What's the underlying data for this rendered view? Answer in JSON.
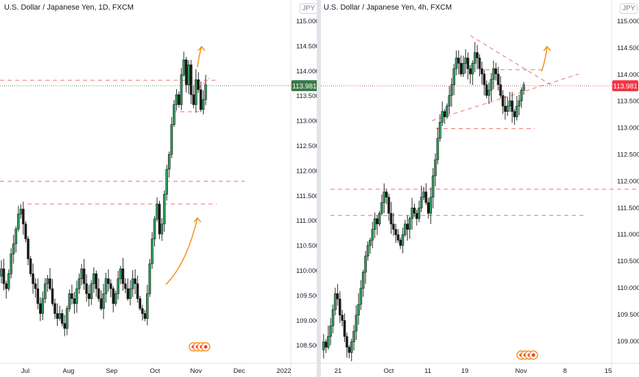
{
  "charts": [
    {
      "title": "U.S. Dollar / Japanese Yen, 1D, FXCM",
      "currency_badge": "JPY",
      "price_label": "113.981",
      "price_label_color": "#3c7a4a",
      "y_tick_labels": [
        "115.000",
        "114.500",
        "114.000",
        "113.500",
        "113.000",
        "112.500",
        "112.000",
        "111.500",
        "111.000",
        "110.500",
        "110.000",
        "109.500",
        "109.000",
        "108.500"
      ],
      "x_tick_labels": [
        "Jul",
        "Aug",
        "Sep",
        "Oct",
        "Nov",
        "Dec",
        "2022"
      ]
    },
    {
      "title": "U.S. Dollar / Japanese Yen, 4h, FXCM",
      "currency_badge": "JPY",
      "price_label": "113.981",
      "price_label_color": "#f23645",
      "y_tick_labels": [
        "115.000",
        "114.500",
        "114.000",
        "113.500",
        "113.000",
        "112.500",
        "112.000",
        "111.500",
        "111.000",
        "110.500",
        "110.000",
        "109.500",
        "109.000"
      ],
      "x_tick_labels": [
        "21",
        "Oct",
        "11",
        "19",
        "Nov",
        "8",
        "15"
      ]
    }
  ],
  "chart_data": [
    {
      "type": "candlestick",
      "title": "U.S. Dollar / Japanese Yen, 1D, FXCM",
      "ylim": [
        108.4,
        115.4
      ],
      "last_price": 113.981,
      "series": [
        {
          "close": [
            110.3,
            110.0,
            109.9,
            110.2,
            110.6,
            110.8,
            111.1,
            111.4,
            111.5,
            111.2,
            110.9,
            110.5,
            110.2,
            110.0,
            109.9,
            109.6,
            109.4,
            109.7,
            110.0,
            110.1,
            109.9,
            109.6,
            109.4,
            109.3,
            109.4,
            109.2,
            109.1,
            109.5,
            109.8,
            109.7,
            109.6,
            109.9,
            110.1,
            110.3,
            110.0,
            109.8,
            109.7,
            110.0,
            110.2,
            109.9,
            109.7,
            109.5,
            109.8,
            110.1,
            110.0,
            109.9,
            109.6,
            109.8,
            110.1,
            110.3,
            110.0,
            109.9,
            109.7,
            109.9,
            110.1,
            110.0,
            109.7,
            109.5,
            109.4,
            109.3,
            109.8,
            110.4,
            110.9,
            111.3,
            111.6,
            111.0,
            111.2,
            111.8,
            112.3,
            112.6,
            113.2,
            113.6,
            113.8,
            113.6,
            114.2,
            114.5,
            114.0,
            114.4,
            113.8,
            113.6,
            114.1,
            113.9,
            113.5,
            113.7,
            114.0
          ]
        }
      ],
      "horizontal_levels": [
        114.09,
        112.06,
        111.6
      ],
      "annotations": [
        "orange arrow up",
        "orange arrow up"
      ]
    },
    {
      "type": "candlestick",
      "title": "U.S. Dollar / Japanese Yen, 4h, FXCM",
      "ylim": [
        108.8,
        115.3
      ],
      "last_price": 113.981,
      "series": [
        {
          "close": [
            109.2,
            109.1,
            109.3,
            109.5,
            109.8,
            110.1,
            110.0,
            109.7,
            109.6,
            109.3,
            109.1,
            109.0,
            109.2,
            109.4,
            109.7,
            109.9,
            110.2,
            110.5,
            110.8,
            111.0,
            111.1,
            111.3,
            111.5,
            111.4,
            111.6,
            111.8,
            112.0,
            111.9,
            111.6,
            111.4,
            111.3,
            111.2,
            111.1,
            111.0,
            111.2,
            111.4,
            111.3,
            111.5,
            111.7,
            111.6,
            111.5,
            111.7,
            111.9,
            112.0,
            111.8,
            111.6,
            111.9,
            112.3,
            112.6,
            113.0,
            113.3,
            113.5,
            113.4,
            113.6,
            113.8,
            114.0,
            114.3,
            114.5,
            114.4,
            114.2,
            114.4,
            114.5,
            114.3,
            114.2,
            114.4,
            114.6,
            114.5,
            114.3,
            114.2,
            114.0,
            113.8,
            113.9,
            114.1,
            114.3,
            114.2,
            114.0,
            113.8,
            113.6,
            113.5,
            113.6,
            113.7,
            113.5,
            113.4,
            113.6,
            113.7,
            113.9,
            114.0
          ]
        }
      ],
      "horizontal_levels": [
        114.28,
        113.18,
        112.05,
        111.56
      ],
      "annotations": [
        "orange arrow up"
      ]
    }
  ]
}
